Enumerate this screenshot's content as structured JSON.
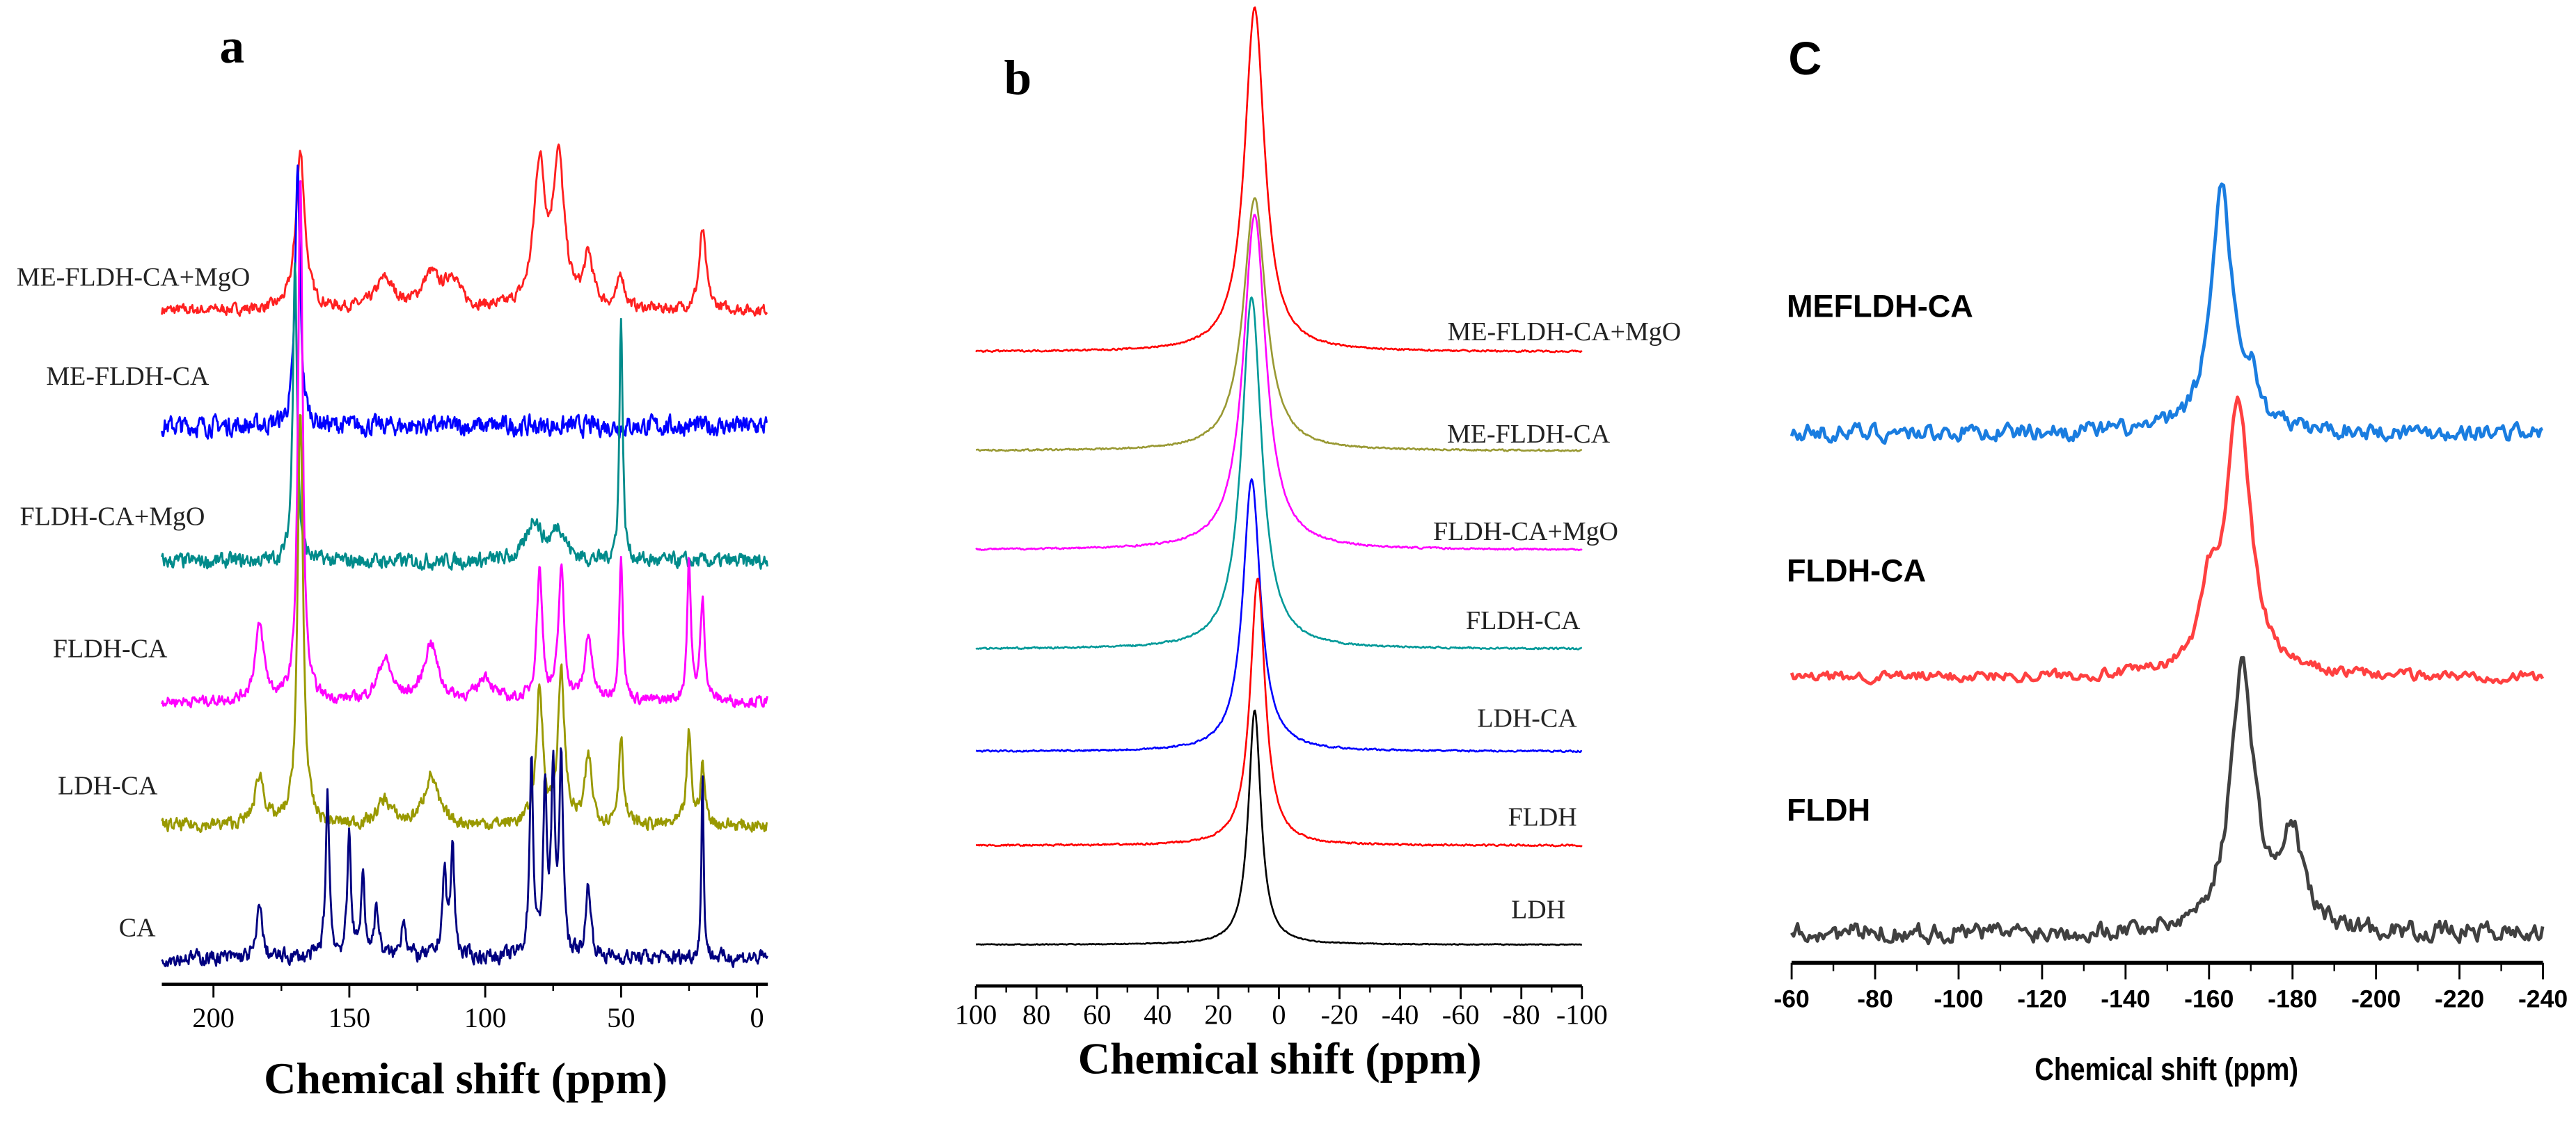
{
  "chart_data": [
    {
      "panel_label": "a",
      "type": "line",
      "xlabel": "Chemical shift (ppm)",
      "xlim": [
        219,
        -4
      ],
      "xticks": [
        200,
        150,
        100,
        50,
        0
      ],
      "series": [
        {
          "name": "ME-FLDH-CA+MgO",
          "color": "#ff2020",
          "noise": 5,
          "peaks": [
            [
              168,
              95,
              2
            ],
            [
              80,
              85,
              2.5
            ],
            [
              73,
              88,
              2.5
            ],
            [
              62,
              30,
              2
            ],
            [
              50,
              20,
              1.5
            ],
            [
              20,
              48,
              1.5
            ],
            [
              137,
              18,
              4
            ],
            [
              120,
              20,
              4
            ],
            [
              112,
              18,
              3
            ]
          ]
        },
        {
          "name": "ME-FLDH-CA",
          "color": "#0000ff",
          "noise": 9,
          "peaks": [
            [
              169,
              155,
              1.1
            ]
          ]
        },
        {
          "name": "FLDH-CA+MgO",
          "color": "#008b8b",
          "noise": 7,
          "peaks": [
            [
              170,
              185,
              0.9
            ],
            [
              50,
              150,
              0.7
            ],
            [
              82,
              25,
              3
            ],
            [
              73,
              20,
              3
            ]
          ]
        },
        {
          "name": "FLDH-CA",
          "color": "#ff00ff",
          "noise": 5,
          "peaks": [
            [
              168,
              320,
              1
            ],
            [
              183,
              45,
              2
            ],
            [
              80,
              80,
              1.2
            ],
            [
              72,
              80,
              1.2
            ],
            [
              62,
              40,
              1.5
            ],
            [
              50,
              90,
              0.8
            ],
            [
              25,
              85,
              0.8
            ],
            [
              20,
              60,
              1
            ],
            [
              137,
              25,
              3
            ],
            [
              120,
              35,
              3
            ],
            [
              100,
              15,
              3
            ]
          ]
        },
        {
          "name": "LDH-CA",
          "color": "#999900",
          "noise": 6,
          "peaks": [
            [
              168,
              250,
              1.2
            ],
            [
              183,
              30,
              2
            ],
            [
              80,
              80,
              1.5
            ],
            [
              72,
              90,
              1.5
            ],
            [
              62,
              40,
              1.5
            ],
            [
              50,
              55,
              1
            ],
            [
              25,
              55,
              1
            ],
            [
              20,
              35,
              1
            ],
            [
              120,
              30,
              3
            ],
            [
              137,
              15,
              3
            ]
          ]
        },
        {
          "name": "CA",
          "color": "#000080",
          "noise": 7,
          "peaks": [
            [
              183,
              35,
              1
            ],
            [
              158,
              100,
              0.8
            ],
            [
              150,
              75,
              0.8
            ],
            [
              145,
              50,
              0.8
            ],
            [
              140,
              30,
              1
            ],
            [
              130,
              25,
              1
            ],
            [
              115,
              50,
              1
            ],
            [
              112,
              65,
              0.8
            ],
            [
              83,
              120,
              0.8
            ],
            [
              78,
              100,
              0.8
            ],
            [
              75,
              110,
              0.8
            ],
            [
              72,
              120,
              0.8
            ],
            [
              62,
              45,
              1
            ],
            [
              20,
              110,
              0.5
            ]
          ]
        }
      ]
    },
    {
      "panel_label": "b",
      "type": "line",
      "xlabel": "Chemical shift (ppm)",
      "xlim": [
        100,
        -100
      ],
      "xticks": [
        100,
        80,
        60,
        40,
        20,
        0,
        -20,
        -40,
        -60,
        -80,
        -100
      ],
      "series": [
        {
          "name": "ME-FLDH-CA+MgO",
          "color": "#ff0000",
          "noise": 0.8,
          "peaks": [
            [
              8,
              208,
              4
            ]
          ]
        },
        {
          "name": "ME-FLDH-CA",
          "color": "#999933",
          "noise": 0.8,
          "peaks": [
            [
              8,
              153,
              4.5
            ]
          ]
        },
        {
          "name": "FLDH-CA+MgO",
          "color": "#ff00ff",
          "noise": 0.8,
          "peaks": [
            [
              8,
              203,
              4.5
            ]
          ]
        },
        {
          "name": "FLDH-CA",
          "color": "#009999",
          "noise": 0.8,
          "peaks": [
            [
              9,
              213,
              4
            ]
          ]
        },
        {
          "name": "LDH-CA",
          "color": "#0000ff",
          "noise": 0.8,
          "peaks": [
            [
              9,
              165,
              3.5
            ]
          ]
        },
        {
          "name": "FLDH",
          "color": "#ff0000",
          "noise": 0.8,
          "peaks": [
            [
              7,
              162,
              3
            ]
          ]
        },
        {
          "name": "LDH",
          "color": "#000000",
          "noise": 0.4,
          "peaks": [
            [
              8,
              142,
              2.5
            ]
          ]
        }
      ]
    },
    {
      "panel_label": "C",
      "type": "line",
      "xlabel": "Chemical shift (ppm)",
      "xlim": [
        -60,
        -240
      ],
      "xticks": [
        -60,
        -80,
        -100,
        -120,
        -140,
        -160,
        -180,
        -200,
        -220,
        -240
      ],
      "series": [
        {
          "name": "MEFLDH-CA",
          "color": "#1a7de0",
          "noise": 8,
          "peaks": [
            [
              -163,
              150,
              3
            ],
            [
              -170,
              25,
              2
            ]
          ]
        },
        {
          "name": "FLDH-CA",
          "color": "#ff4040",
          "noise": 5,
          "peaks": [
            [
              -167,
              165,
              3.5
            ],
            [
              -160,
              40,
              2.5
            ]
          ]
        },
        {
          "name": "FLDH",
          "color": "#404040",
          "noise": 9,
          "peaks": [
            [
              -168,
              160,
              3.5
            ],
            [
              -180,
              55,
              3
            ]
          ]
        }
      ]
    }
  ]
}
